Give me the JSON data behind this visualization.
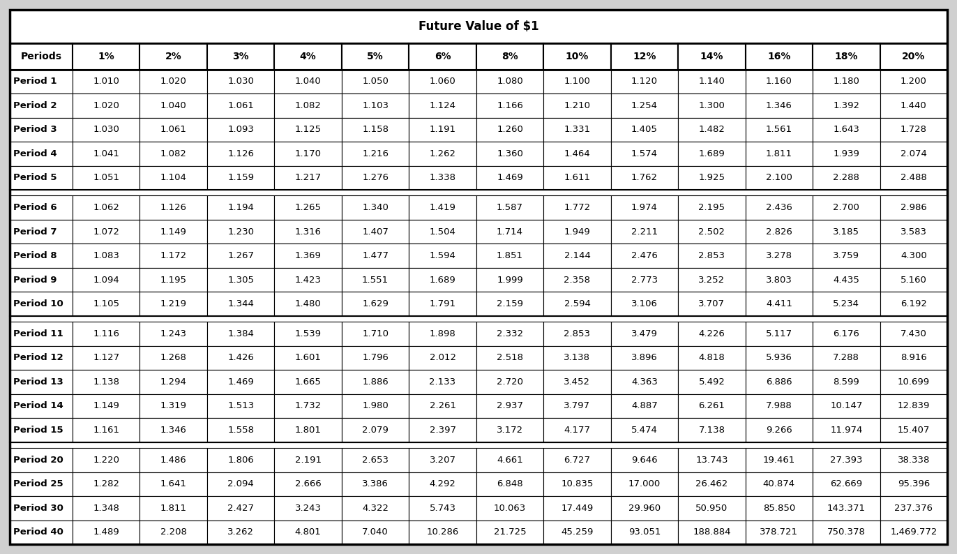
{
  "title": "Future Value of $1",
  "headers": [
    "Periods",
    "1%",
    "2%",
    "3%",
    "4%",
    "5%",
    "6%",
    "8%",
    "10%",
    "12%",
    "14%",
    "16%",
    "18%",
    "20%"
  ],
  "rows": [
    [
      "Period 1",
      "1.010",
      "1.020",
      "1.030",
      "1.040",
      "1.050",
      "1.060",
      "1.080",
      "1.100",
      "1.120",
      "1.140",
      "1.160",
      "1.180",
      "1.200"
    ],
    [
      "Period 2",
      "1.020",
      "1.040",
      "1.061",
      "1.082",
      "1.103",
      "1.124",
      "1.166",
      "1.210",
      "1.254",
      "1.300",
      "1.346",
      "1.392",
      "1.440"
    ],
    [
      "Period 3",
      "1.030",
      "1.061",
      "1.093",
      "1.125",
      "1.158",
      "1.191",
      "1.260",
      "1.331",
      "1.405",
      "1.482",
      "1.561",
      "1.643",
      "1.728"
    ],
    [
      "Period 4",
      "1.041",
      "1.082",
      "1.126",
      "1.170",
      "1.216",
      "1.262",
      "1.360",
      "1.464",
      "1.574",
      "1.689",
      "1.811",
      "1.939",
      "2.074"
    ],
    [
      "Period 5",
      "1.051",
      "1.104",
      "1.159",
      "1.217",
      "1.276",
      "1.338",
      "1.469",
      "1.611",
      "1.762",
      "1.925",
      "2.100",
      "2.288",
      "2.488"
    ],
    [
      "Period 6",
      "1.062",
      "1.126",
      "1.194",
      "1.265",
      "1.340",
      "1.419",
      "1.587",
      "1.772",
      "1.974",
      "2.195",
      "2.436",
      "2.700",
      "2.986"
    ],
    [
      "Period 7",
      "1.072",
      "1.149",
      "1.230",
      "1.316",
      "1.407",
      "1.504",
      "1.714",
      "1.949",
      "2.211",
      "2.502",
      "2.826",
      "3.185",
      "3.583"
    ],
    [
      "Period 8",
      "1.083",
      "1.172",
      "1.267",
      "1.369",
      "1.477",
      "1.594",
      "1.851",
      "2.144",
      "2.476",
      "2.853",
      "3.278",
      "3.759",
      "4.300"
    ],
    [
      "Period 9",
      "1.094",
      "1.195",
      "1.305",
      "1.423",
      "1.551",
      "1.689",
      "1.999",
      "2.358",
      "2.773",
      "3.252",
      "3.803",
      "4.435",
      "5.160"
    ],
    [
      "Period 10",
      "1.105",
      "1.219",
      "1.344",
      "1.480",
      "1.629",
      "1.791",
      "2.159",
      "2.594",
      "3.106",
      "3.707",
      "4.411",
      "5.234",
      "6.192"
    ],
    [
      "Period 11",
      "1.116",
      "1.243",
      "1.384",
      "1.539",
      "1.710",
      "1.898",
      "2.332",
      "2.853",
      "3.479",
      "4.226",
      "5.117",
      "6.176",
      "7.430"
    ],
    [
      "Period 12",
      "1.127",
      "1.268",
      "1.426",
      "1.601",
      "1.796",
      "2.012",
      "2.518",
      "3.138",
      "3.896",
      "4.818",
      "5.936",
      "7.288",
      "8.916"
    ],
    [
      "Period 13",
      "1.138",
      "1.294",
      "1.469",
      "1.665",
      "1.886",
      "2.133",
      "2.720",
      "3.452",
      "4.363",
      "5.492",
      "6.886",
      "8.599",
      "10.699"
    ],
    [
      "Period 14",
      "1.149",
      "1.319",
      "1.513",
      "1.732",
      "1.980",
      "2.261",
      "2.937",
      "3.797",
      "4.887",
      "6.261",
      "7.988",
      "10.147",
      "12.839"
    ],
    [
      "Period 15",
      "1.161",
      "1.346",
      "1.558",
      "1.801",
      "2.079",
      "2.397",
      "3.172",
      "4.177",
      "5.474",
      "7.138",
      "9.266",
      "11.974",
      "15.407"
    ],
    [
      "Period 20",
      "1.220",
      "1.486",
      "1.806",
      "2.191",
      "2.653",
      "3.207",
      "4.661",
      "6.727",
      "9.646",
      "13.743",
      "19.461",
      "27.393",
      "38.338"
    ],
    [
      "Period 25",
      "1.282",
      "1.641",
      "2.094",
      "2.666",
      "3.386",
      "4.292",
      "6.848",
      "10.835",
      "17.000",
      "26.462",
      "40.874",
      "62.669",
      "95.396"
    ],
    [
      "Period 30",
      "1.348",
      "1.811",
      "2.427",
      "3.243",
      "4.322",
      "5.743",
      "10.063",
      "17.449",
      "29.960",
      "50.950",
      "85.850",
      "143.371",
      "237.376"
    ],
    [
      "Period 40",
      "1.489",
      "2.208",
      "3.262",
      "4.801",
      "7.040",
      "10.286",
      "21.725",
      "45.259",
      "93.051",
      "188.884",
      "378.721",
      "750.378",
      "1,469.772"
    ]
  ],
  "group_breaks": [
    4,
    9,
    14
  ],
  "outer_bg": "#d0d0d0",
  "table_bg": "#ffffff",
  "border_color": "#000000",
  "text_color": "#000000",
  "title_fontsize": 12,
  "header_fontsize": 10,
  "cell_fontsize": 9.5,
  "fig_width": 13.72,
  "fig_height": 7.94,
  "dpi": 100
}
